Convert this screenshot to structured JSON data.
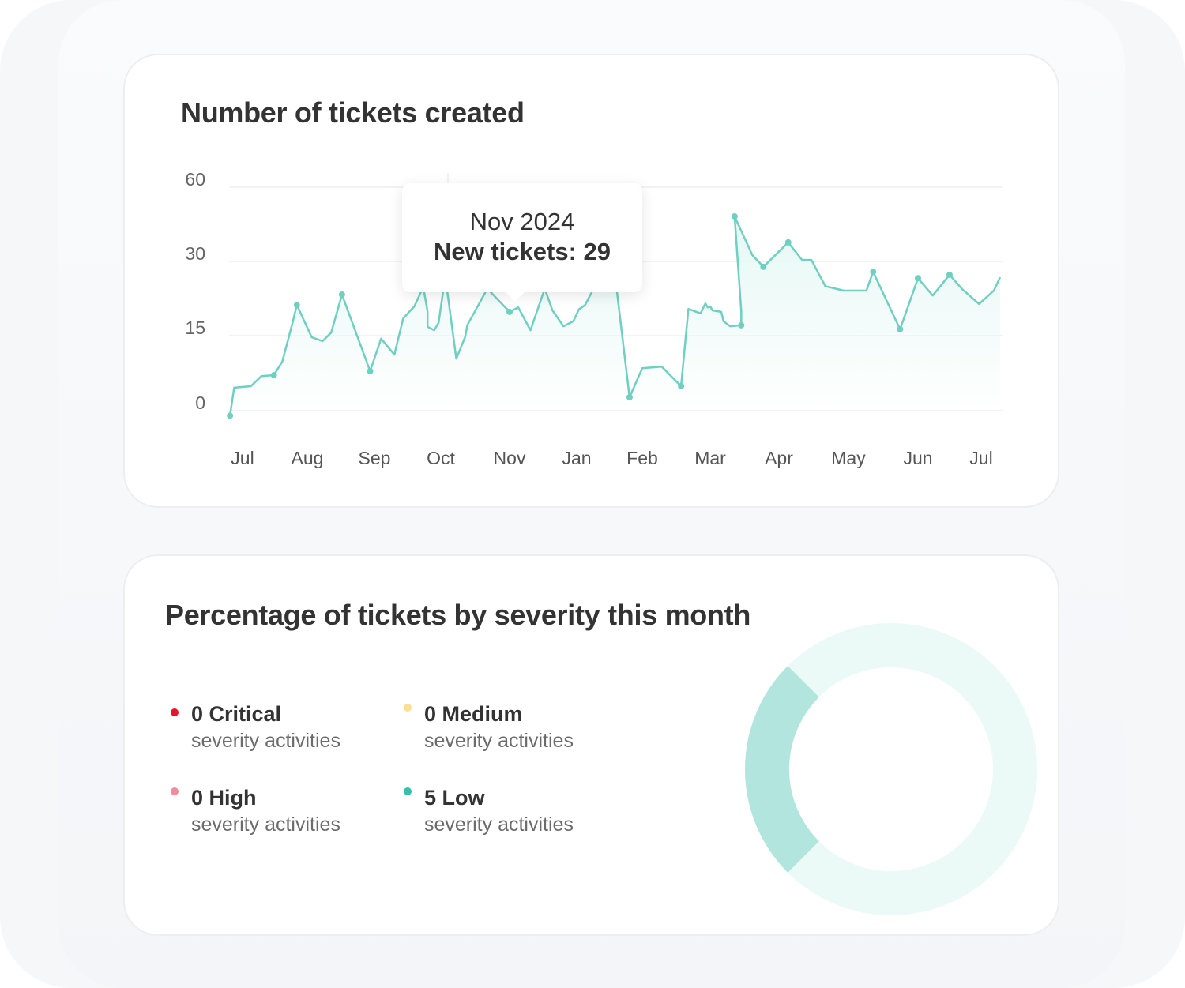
{
  "tickets_chart": {
    "title": "Number of tickets created",
    "tooltip": {
      "date": "Nov 2024",
      "label": "New tickets: 29"
    }
  },
  "severity_card": {
    "title": "Percentage of tickets by severity this month",
    "items": [
      {
        "count_label": "0 Critical",
        "sub": "severity activities",
        "color": "#e8132f"
      },
      {
        "count_label": "0 Medium",
        "sub": "severity activities",
        "color": "#fbdf97"
      },
      {
        "count_label": "0 High",
        "sub": "severity activities",
        "color": "#f28c9c"
      },
      {
        "count_label": "5 Low",
        "sub": "severity activities",
        "color": "#36bfaa"
      }
    ]
  },
  "chart_data": [
    {
      "type": "area",
      "title": "Number of tickets created",
      "y_ticks": [
        0,
        15,
        30,
        60
      ],
      "x_tick_labels": [
        "Jul",
        "Aug",
        "Sep",
        "Oct",
        "Nov",
        "Jan",
        "Feb",
        "Mar",
        "Apr",
        "May",
        "Jun",
        "Jul"
      ],
      "grid": true,
      "line_color": "#6fd0c2",
      "fill_color": "#e6f8f5",
      "points": [
        {
          "date": "2024-06-25",
          "value": -1,
          "marker": true
        },
        {
          "date": "2024-06-27",
          "value": 4.6
        },
        {
          "date": "2024-07-05",
          "value": 4.9
        },
        {
          "date": "2024-07-10",
          "value": 6.9
        },
        {
          "date": "2024-07-16",
          "value": 7.1,
          "marker": true
        },
        {
          "date": "2024-07-20",
          "value": 9.8
        },
        {
          "date": "2024-07-25",
          "value": 17.7
        },
        {
          "date": "2024-07-27",
          "value": 21.2,
          "marker": true
        },
        {
          "date": "2024-08-03",
          "value": 14.7
        },
        {
          "date": "2024-08-08",
          "value": 13.9
        },
        {
          "date": "2024-08-12",
          "value": 15.6
        },
        {
          "date": "2024-08-17",
          "value": 23.3,
          "marker": true
        },
        {
          "date": "2024-08-30",
          "value": 7.9,
          "marker": true
        },
        {
          "date": "2024-09-04",
          "value": 14.4
        },
        {
          "date": "2024-09-10",
          "value": 11.2
        },
        {
          "date": "2024-09-14",
          "value": 18.5
        },
        {
          "date": "2024-09-19",
          "value": 20.9
        },
        {
          "date": "2024-09-22",
          "value": 23.8
        },
        {
          "date": "2024-09-23",
          "value": 25
        },
        {
          "date": "2024-09-25",
          "value": 19.9
        },
        {
          "date": "2024-09-25",
          "value": 16.8
        },
        {
          "date": "2024-09-28",
          "value": 16.1
        },
        {
          "date": "2024-09-30",
          "value": 17.6
        },
        {
          "date": "2024-10-03",
          "value": 27
        },
        {
          "date": "2024-10-08",
          "value": 10.4
        },
        {
          "date": "2024-10-12",
          "value": 14.8
        },
        {
          "date": "2024-10-13",
          "value": 17.2
        },
        {
          "date": "2024-10-16",
          "value": 19.6
        },
        {
          "date": "2024-10-22",
          "value": 24.5
        },
        {
          "date": "2024-11-01",
          "value": 19.8,
          "marker": true
        },
        {
          "date": "2024-11-09",
          "value": 20.7
        },
        {
          "date": "2024-11-20",
          "value": 16.1
        },
        {
          "date": "2024-12-03",
          "value": 24.5
        },
        {
          "date": "2024-12-10",
          "value": 20.1
        },
        {
          "date": "2024-12-20",
          "value": 16.9
        },
        {
          "date": "2024-12-29",
          "value": 17.9
        },
        {
          "date": "2025-01-02",
          "value": 20.3
        },
        {
          "date": "2025-01-05",
          "value": 21.2
        },
        {
          "date": "2025-01-12",
          "value": 27
        },
        {
          "date": "2025-01-20",
          "value": 24
        },
        {
          "date": "2025-01-26",
          "value": 2.7,
          "marker": true
        },
        {
          "date": "2025-02-01",
          "value": 8.5
        },
        {
          "date": "2025-02-09",
          "value": 8.8
        },
        {
          "date": "2025-02-17",
          "value": 4.9,
          "marker": true
        },
        {
          "date": "2025-02-20",
          "value": 20.4
        },
        {
          "date": "2025-02-25",
          "value": 19.5
        },
        {
          "date": "2025-02-27",
          "value": 21.5
        },
        {
          "date": "2025-02-28",
          "value": 20.7
        },
        {
          "date": "2025-03-01",
          "value": 20.9
        },
        {
          "date": "2025-03-02",
          "value": 20.1
        },
        {
          "date": "2025-03-06",
          "value": 19.8
        },
        {
          "date": "2025-03-07",
          "value": 17.9
        },
        {
          "date": "2025-03-10",
          "value": 16.9
        },
        {
          "date": "2025-03-15",
          "value": 17.1,
          "marker": true
        },
        {
          "date": "2025-03-15",
          "value": 19.9
        },
        {
          "date": "2025-03-12",
          "value": 48.2,
          "marker": true
        },
        {
          "date": "2025-03-20",
          "value": 32.6
        },
        {
          "date": "2025-03-25",
          "value": 28.9,
          "marker": true
        },
        {
          "date": "2025-04-05",
          "value": 37.7,
          "marker": true
        },
        {
          "date": "2025-04-11",
          "value": 30.6
        },
        {
          "date": "2025-04-15",
          "value": 30.6
        },
        {
          "date": "2025-04-21",
          "value": 25.0
        },
        {
          "date": "2025-04-29",
          "value": 24.1
        },
        {
          "date": "2025-05-09",
          "value": 24.1
        },
        {
          "date": "2025-05-12",
          "value": 27.9,
          "marker": true
        },
        {
          "date": "2025-05-24",
          "value": 16.3,
          "marker": true
        },
        {
          "date": "2025-06-01",
          "value": 26.6,
          "marker": true
        },
        {
          "date": "2025-06-08",
          "value": 23.1
        },
        {
          "date": "2025-06-16",
          "value": 27.3,
          "marker": true
        },
        {
          "date": "2025-06-22",
          "value": 24.4
        },
        {
          "date": "2025-06-30",
          "value": 21.4
        },
        {
          "date": "2025-07-07",
          "value": 24.1
        },
        {
          "date": "2025-07-10",
          "value": 26.8
        }
      ]
    },
    {
      "type": "pie",
      "title": "Percentage of tickets by severity this month",
      "variant": "donut",
      "highlight_fraction": 0.25,
      "highlight_color": "#b2e5de",
      "track_color": "#ebfaf7"
    }
  ]
}
